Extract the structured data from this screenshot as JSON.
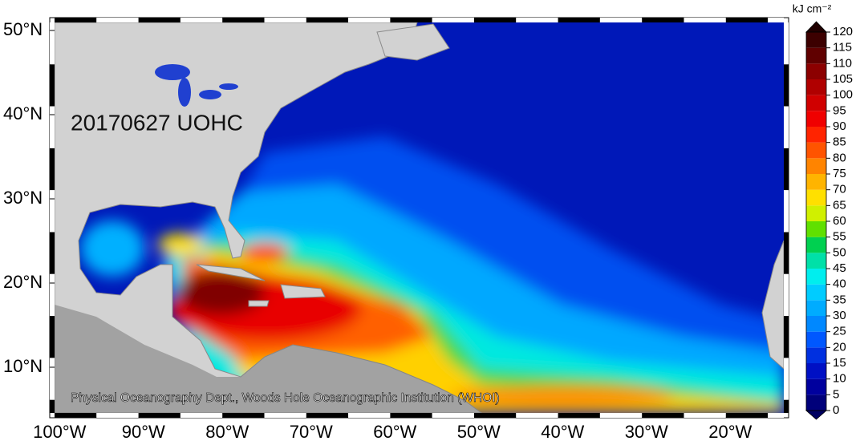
{
  "map": {
    "title": "20170627 UOHC",
    "credit": "Physical Oceanography Dept., Woods Hole Oceanographic Institution (WHOI)",
    "lon_ticks": [
      {
        "value": -100,
        "label": "100°W"
      },
      {
        "value": -90,
        "label": "90°W"
      },
      {
        "value": -80,
        "label": "80°W"
      },
      {
        "value": -70,
        "label": "70°W"
      },
      {
        "value": -60,
        "label": "60°W"
      },
      {
        "value": -50,
        "label": "50°W"
      },
      {
        "value": -40,
        "label": "40°W"
      },
      {
        "value": -30,
        "label": "30°W"
      },
      {
        "value": -20,
        "label": "20°W"
      }
    ],
    "lat_ticks": [
      {
        "value": 50,
        "label": "50°N"
      },
      {
        "value": 40,
        "label": "40°N"
      },
      {
        "value": 30,
        "label": "30°N"
      },
      {
        "value": 20,
        "label": "20°N"
      },
      {
        "value": 10,
        "label": "10°N"
      }
    ]
  },
  "colorbar": {
    "unit": "kJ cm⁻²",
    "lim": [
      0,
      120
    ],
    "ticks": [
      0,
      5,
      10,
      15,
      20,
      25,
      30,
      35,
      40,
      45,
      50,
      55,
      60,
      65,
      70,
      75,
      80,
      85,
      90,
      95,
      100,
      105,
      110,
      115,
      120
    ],
    "colors": [
      "#00007a",
      "#00009e",
      "#0010c4",
      "#0030e0",
      "#0058ff",
      "#0088ff",
      "#00acff",
      "#00ccff",
      "#00eeee",
      "#00e0a8",
      "#00d050",
      "#60e000",
      "#d0f000",
      "#ffe000",
      "#ffb400",
      "#ff8400",
      "#ff5400",
      "#ff2400",
      "#f00000",
      "#d00000",
      "#b00000",
      "#8c0000",
      "#600000",
      "#3c0000"
    ],
    "under_color": "#000060",
    "over_color": "#200000"
  }
}
